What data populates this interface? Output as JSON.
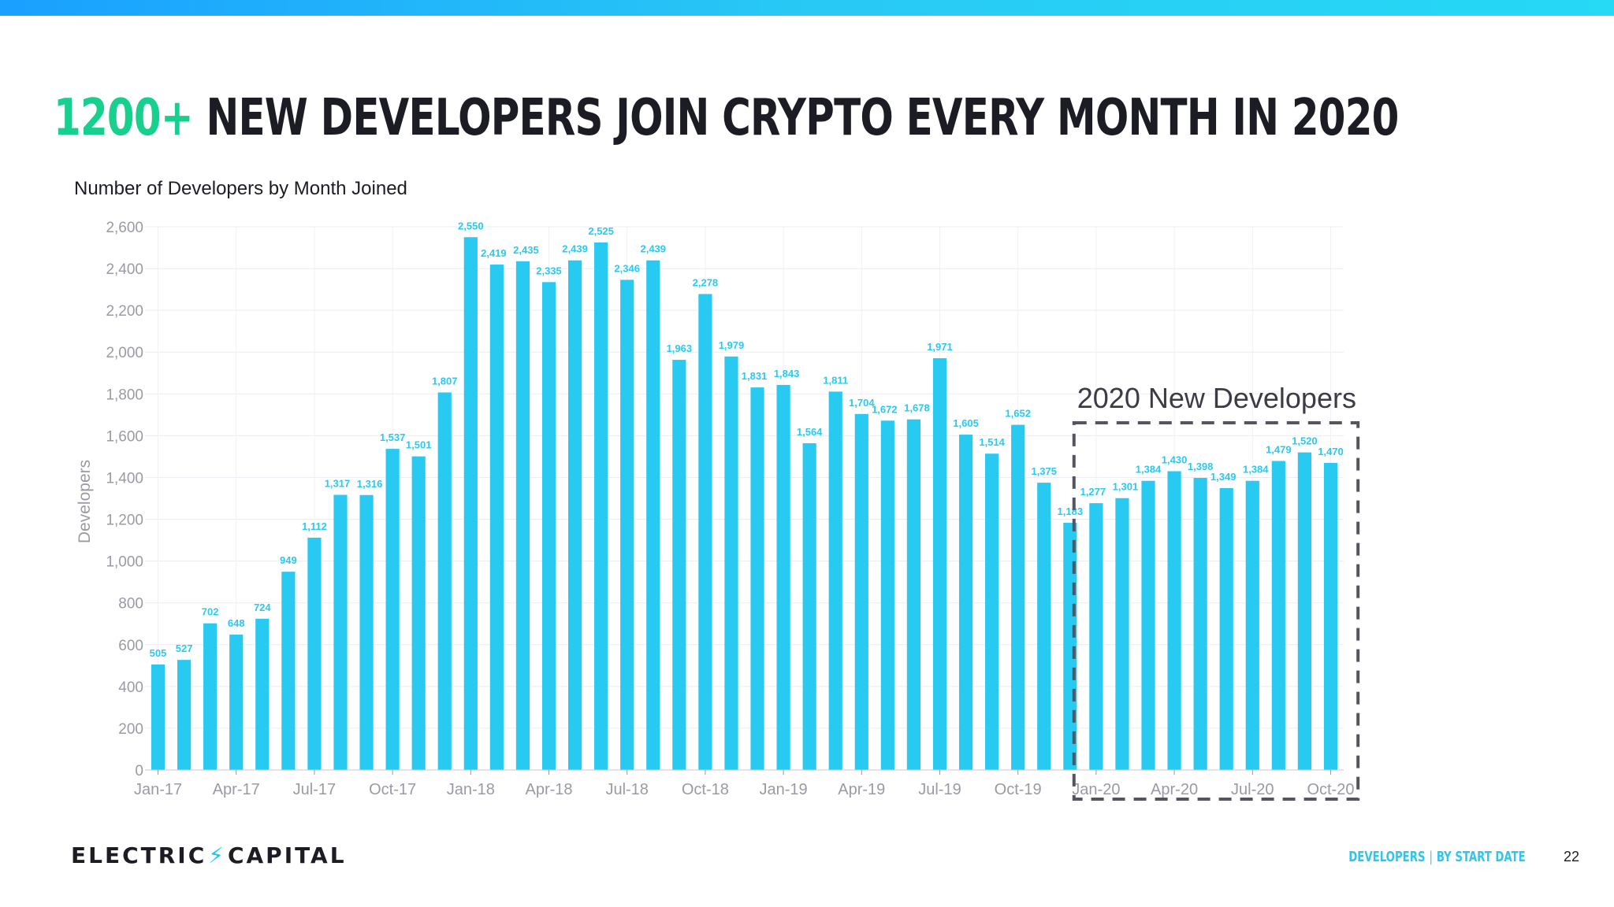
{
  "slide": {
    "title_accent": "1200+",
    "title_rest": "NEW DEVELOPERS JOIN CRYPTO EVERY MONTH IN 2020",
    "subtitle": "Number of Developers by Month Joined"
  },
  "chart_data": {
    "type": "bar",
    "title": "Number of Developers by Month Joined",
    "xlabel": "",
    "ylabel": "Developers",
    "ylim": [
      0,
      2600
    ],
    "yticks": [
      0,
      200,
      400,
      600,
      800,
      1000,
      1200,
      1400,
      1600,
      1800,
      2000,
      2200,
      2400,
      2600
    ],
    "ytick_labels": [
      "0",
      "200",
      "400",
      "600",
      "800",
      "1,000",
      "1,200",
      "1,400",
      "1,600",
      "1,800",
      "2,000",
      "2,200",
      "2,400",
      "2,600"
    ],
    "categories": [
      "Jan-17",
      "Feb-17",
      "Mar-17",
      "Apr-17",
      "May-17",
      "Jun-17",
      "Jul-17",
      "Aug-17",
      "Sep-17",
      "Oct-17",
      "Nov-17",
      "Dec-17",
      "Jan-18",
      "Feb-18",
      "Mar-18",
      "Apr-18",
      "May-18",
      "Jun-18",
      "Jul-18",
      "Aug-18",
      "Sep-18",
      "Oct-18",
      "Nov-18",
      "Dec-18",
      "Jan-19",
      "Feb-19",
      "Mar-19",
      "Apr-19",
      "May-19",
      "Jun-19",
      "Jul-19",
      "Aug-19",
      "Sep-19",
      "Oct-19",
      "Nov-19",
      "Dec-19",
      "Jan-20",
      "Feb-20",
      "Mar-20",
      "Apr-20",
      "May-20",
      "Jun-20",
      "Jul-20",
      "Aug-20",
      "Sep-20",
      "Oct-20"
    ],
    "values": [
      505,
      527,
      702,
      648,
      724,
      949,
      1112,
      1317,
      1316,
      1537,
      1501,
      1807,
      2550,
      2419,
      2435,
      2335,
      2439,
      2525,
      2346,
      2439,
      1963,
      2278,
      1979,
      1831,
      1843,
      1564,
      1811,
      1704,
      1672,
      1678,
      1971,
      1605,
      1514,
      1652,
      1375,
      1183,
      1277,
      1301,
      1384,
      1430,
      1398,
      1349,
      1384,
      1479,
      1520,
      1470
    ],
    "value_labels": [
      "505",
      "527",
      "702",
      "648",
      "724",
      "949",
      "1,112",
      "1,317",
      "1,316",
      "1,537",
      "1,501",
      "1,807",
      "2,550",
      "2,419",
      "2,435",
      "2,335",
      "2,439",
      "2,525",
      "2,346",
      "2,439",
      "1,963",
      "2,278",
      "1,979",
      "1,831",
      "1,843",
      "1,564",
      "1,811",
      "1,704",
      "1,672",
      "1,678",
      "1,971",
      "1,605",
      "1,514",
      "1,652",
      "1,375",
      "1,183",
      "1,277",
      "1,301",
      "1,384",
      "1,430",
      "1,398",
      "1,349",
      "1,384",
      "1,479",
      "1,520",
      "1,470"
    ],
    "xtick_labels": [
      "Jan-17",
      "Apr-17",
      "Jul-17",
      "Oct-17",
      "Jan-18",
      "Apr-18",
      "Jul-18",
      "Oct-18",
      "Jan-19",
      "Apr-19",
      "Jul-19",
      "Oct-19",
      "Jan-20",
      "Apr-20",
      "Jul-20",
      "Oct-20"
    ],
    "xtick_every": 3,
    "grid": true,
    "bar_color": "#29caf2",
    "label_color": "#29caf2",
    "annotation": {
      "text": "2020 New Developers",
      "range": [
        "Jan-20",
        "Oct-20"
      ],
      "style": "dashed-box"
    }
  },
  "footer": {
    "logo_left": "ELECTRIC",
    "logo_bolt": "⚡",
    "logo_right": "CAPITAL",
    "tag_left": "DEVELOPERS",
    "tag_sep": "|",
    "tag_right": "BY START DATE",
    "page_number": "22"
  },
  "colors": {
    "accent_green": "#18d08e",
    "accent_blue": "#29caf2",
    "text_dark": "#1c1c24"
  }
}
